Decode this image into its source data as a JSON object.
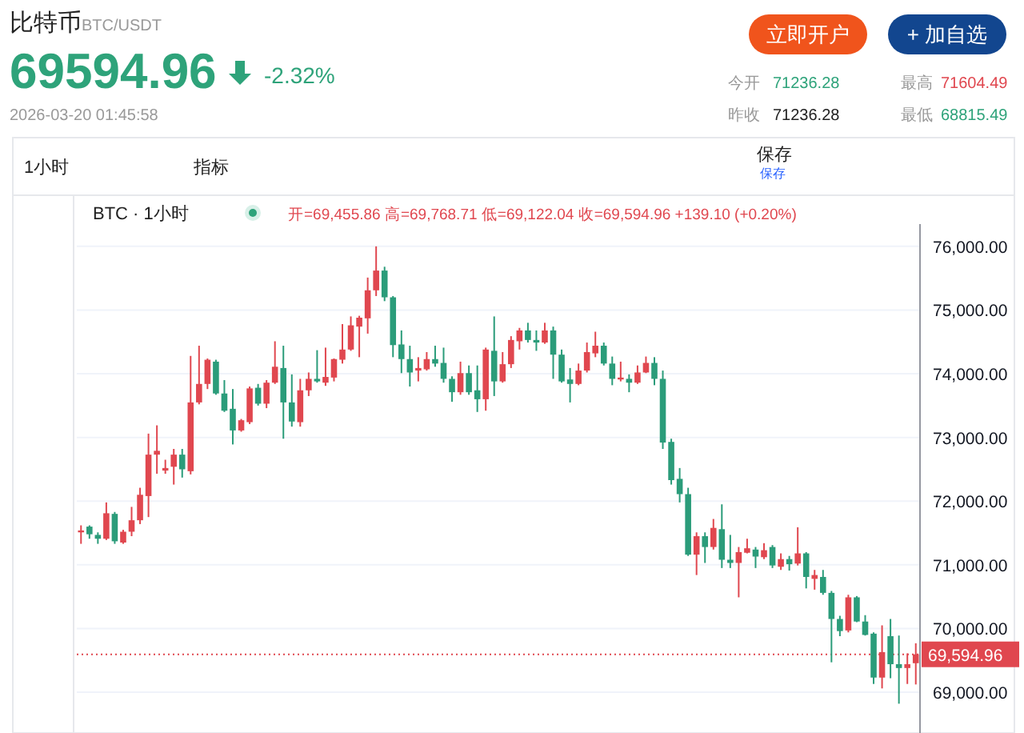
{
  "chart_data": {
    "type": "candlestick",
    "title": "比特币",
    "subtitle": "BTC/USDT",
    "annotations": [
      "69594.96",
      "-2.32%",
      "2026-03-20 01:45:58",
      "立即开户",
      "+ 加自选",
      "今开",
      "71236.28",
      "最高",
      "71604.49",
      "昨收",
      "71236.28",
      "最低",
      "68815.49",
      "1小时",
      "指标",
      "保存",
      "保存",
      "BTC · 1小时",
      "开=69,455.86 高=69,768.71 低=69,122.04 收=69,594.96 +139.10 (+0.20%)"
    ],
    "categories": [
      null,
      null,
      null,
      null,
      null,
      null,
      null,
      null,
      null,
      null,
      null,
      null,
      null,
      null,
      null,
      null,
      null,
      null,
      null,
      null,
      null,
      null,
      null,
      null,
      null,
      null,
      null,
      null,
      null,
      null,
      null,
      null,
      null,
      null,
      null,
      null,
      null,
      null,
      null,
      null,
      null,
      null,
      null,
      null,
      null,
      null,
      null,
      null,
      null,
      null,
      null,
      null,
      null,
      null,
      null,
      null,
      null,
      null,
      null,
      null,
      null,
      null,
      null,
      null,
      null,
      null,
      null,
      null,
      null,
      null,
      null,
      null,
      null,
      null,
      null,
      null,
      null,
      null,
      null,
      null,
      null,
      null,
      null,
      null,
      null,
      null,
      null,
      null,
      null,
      null,
      null,
      null,
      null,
      null,
      null,
      null,
      null,
      null,
      null,
      null
    ],
    "ohlc": [
      [
        71510,
        71620,
        71330,
        71540
      ],
      [
        71600,
        71620,
        71410,
        71480
      ],
      [
        71470,
        71510,
        71330,
        71410
      ],
      [
        71410,
        71980,
        71390,
        71810
      ],
      [
        71800,
        71830,
        71330,
        71370
      ],
      [
        71350,
        71550,
        71330,
        71520
      ],
      [
        71520,
        71910,
        71450,
        71700
      ],
      [
        71700,
        72210,
        71640,
        72100
      ],
      [
        72080,
        73060,
        71750,
        72730
      ],
      [
        72730,
        73190,
        72430,
        72790
      ],
      [
        72480,
        72650,
        72430,
        72520
      ],
      [
        72540,
        72820,
        72260,
        72730
      ],
      [
        72730,
        72820,
        72370,
        72500
      ],
      [
        72470,
        74280,
        72420,
        73550
      ],
      [
        73550,
        74440,
        73520,
        73840
      ],
      [
        73840,
        74240,
        73760,
        74220
      ],
      [
        74190,
        74220,
        73670,
        73690
      ],
      [
        73690,
        73900,
        73400,
        73420
      ],
      [
        73450,
        73760,
        72890,
        73110
      ],
      [
        73110,
        73290,
        73090,
        73270
      ],
      [
        73240,
        73800,
        73210,
        73770
      ],
      [
        73780,
        73840,
        73500,
        73530
      ],
      [
        73530,
        73900,
        73460,
        73860
      ],
      [
        73860,
        74510,
        73840,
        74110
      ],
      [
        74090,
        74440,
        72980,
        73550
      ],
      [
        73550,
        73990,
        73170,
        73250
      ],
      [
        73240,
        73920,
        73170,
        73740
      ],
      [
        73740,
        74020,
        73650,
        73920
      ],
      [
        73920,
        74370,
        73860,
        73880
      ],
      [
        73860,
        74410,
        73810,
        73950
      ],
      [
        73940,
        74240,
        73880,
        74230
      ],
      [
        74220,
        74780,
        74160,
        74380
      ],
      [
        74380,
        74900,
        74360,
        74760
      ],
      [
        74740,
        74910,
        74260,
        74880
      ],
      [
        74870,
        75510,
        74630,
        75310
      ],
      [
        75310,
        76000,
        75220,
        75620
      ],
      [
        75620,
        75680,
        75140,
        75200
      ],
      [
        75200,
        75220,
        74260,
        74450
      ],
      [
        74460,
        74680,
        74010,
        74230
      ],
      [
        74230,
        74440,
        73800,
        74020
      ],
      [
        74050,
        74260,
        73880,
        74090
      ],
      [
        74070,
        74340,
        74050,
        74230
      ],
      [
        74230,
        74440,
        74110,
        74160
      ],
      [
        74170,
        74410,
        73860,
        73920
      ],
      [
        73920,
        73960,
        73560,
        73710
      ],
      [
        73710,
        74190,
        73670,
        74010
      ],
      [
        74010,
        74130,
        73670,
        73710
      ],
      [
        73740,
        74130,
        73400,
        73600
      ],
      [
        73600,
        74410,
        73420,
        74380
      ],
      [
        74360,
        74900,
        73650,
        73880
      ],
      [
        73880,
        74340,
        73860,
        74150
      ],
      [
        74150,
        74590,
        74090,
        74530
      ],
      [
        74510,
        74720,
        74380,
        74680
      ],
      [
        74680,
        74800,
        74490,
        74530
      ],
      [
        74530,
        74680,
        74360,
        74490
      ],
      [
        74490,
        74800,
        74470,
        74680
      ],
      [
        74680,
        74740,
        73920,
        74300
      ],
      [
        74300,
        74380,
        73860,
        73880
      ],
      [
        73910,
        74090,
        73550,
        73840
      ],
      [
        73840,
        74160,
        73820,
        74050
      ],
      [
        74050,
        74490,
        74020,
        74340
      ],
      [
        74320,
        74660,
        74260,
        74440
      ],
      [
        74440,
        74490,
        74130,
        74160
      ],
      [
        74160,
        74270,
        73820,
        73920
      ],
      [
        73910,
        74190,
        73880,
        73940
      ],
      [
        73920,
        73990,
        73710,
        73860
      ],
      [
        73860,
        74130,
        73840,
        74020
      ],
      [
        74020,
        74270,
        74010,
        74170
      ],
      [
        74170,
        74260,
        73820,
        73920
      ],
      [
        73920,
        74050,
        72820,
        72920
      ],
      [
        72930,
        72980,
        72260,
        72330
      ],
      [
        72350,
        72520,
        71980,
        72110
      ],
      [
        72110,
        72210,
        71140,
        71160
      ],
      [
        71160,
        71510,
        70840,
        71450
      ],
      [
        71450,
        71510,
        71030,
        71280
      ],
      [
        71280,
        71720,
        71240,
        71580
      ],
      [
        71560,
        71950,
        70950,
        71080
      ],
      [
        71080,
        71470,
        70950,
        71030
      ],
      [
        71030,
        71280,
        70490,
        71200
      ],
      [
        71190,
        71410,
        71180,
        71260
      ],
      [
        71240,
        71280,
        70950,
        71130
      ],
      [
        71120,
        71340,
        71090,
        71230
      ],
      [
        71280,
        71310,
        70950,
        70990
      ],
      [
        70970,
        71180,
        70920,
        71090
      ],
      [
        71090,
        71140,
        70910,
        71010
      ],
      [
        71020,
        71590,
        70990,
        71180
      ],
      [
        71180,
        71200,
        70630,
        70810
      ],
      [
        70780,
        70920,
        70610,
        70840
      ],
      [
        70810,
        70920,
        70530,
        70560
      ],
      [
        70560,
        70590,
        69470,
        70150
      ],
      [
        70150,
        70200,
        69880,
        69960
      ],
      [
        69970,
        70530,
        69940,
        70490
      ],
      [
        70490,
        70510,
        70100,
        70110
      ],
      [
        70110,
        70210,
        69890,
        69900
      ],
      [
        69920,
        69940,
        69130,
        69230
      ],
      [
        69230,
        70050,
        69060,
        69630
      ],
      [
        69880,
        70150,
        69220,
        69440
      ],
      [
        69440,
        69890,
        68820,
        69380
      ],
      [
        69380,
        69610,
        69130,
        69440
      ],
      [
        69455.86,
        69768.71,
        69122.04,
        69594.96
      ]
    ],
    "ylim": [
      68360,
      76350
    ],
    "yticks": [
      {
        "value": 69000,
        "label": "69,000.00"
      },
      {
        "value": 70000,
        "label": "70,000.00"
      },
      {
        "value": 71000,
        "label": "71,000.00"
      },
      {
        "value": 72000,
        "label": "72,000.00"
      },
      {
        "value": 73000,
        "label": "73,000.00"
      },
      {
        "value": 74000,
        "label": "74,000.00"
      },
      {
        "value": 75000,
        "label": "75,000.00"
      },
      {
        "value": 76000,
        "label": "76,000.00"
      }
    ],
    "grid": "y",
    "tick_labels": "y",
    "ref_lines": [
      {
        "axis": "y",
        "value": 69594.96,
        "label": "69,594.96",
        "color": "#e0474f",
        "line_style": "dotted"
      }
    ]
  }
}
